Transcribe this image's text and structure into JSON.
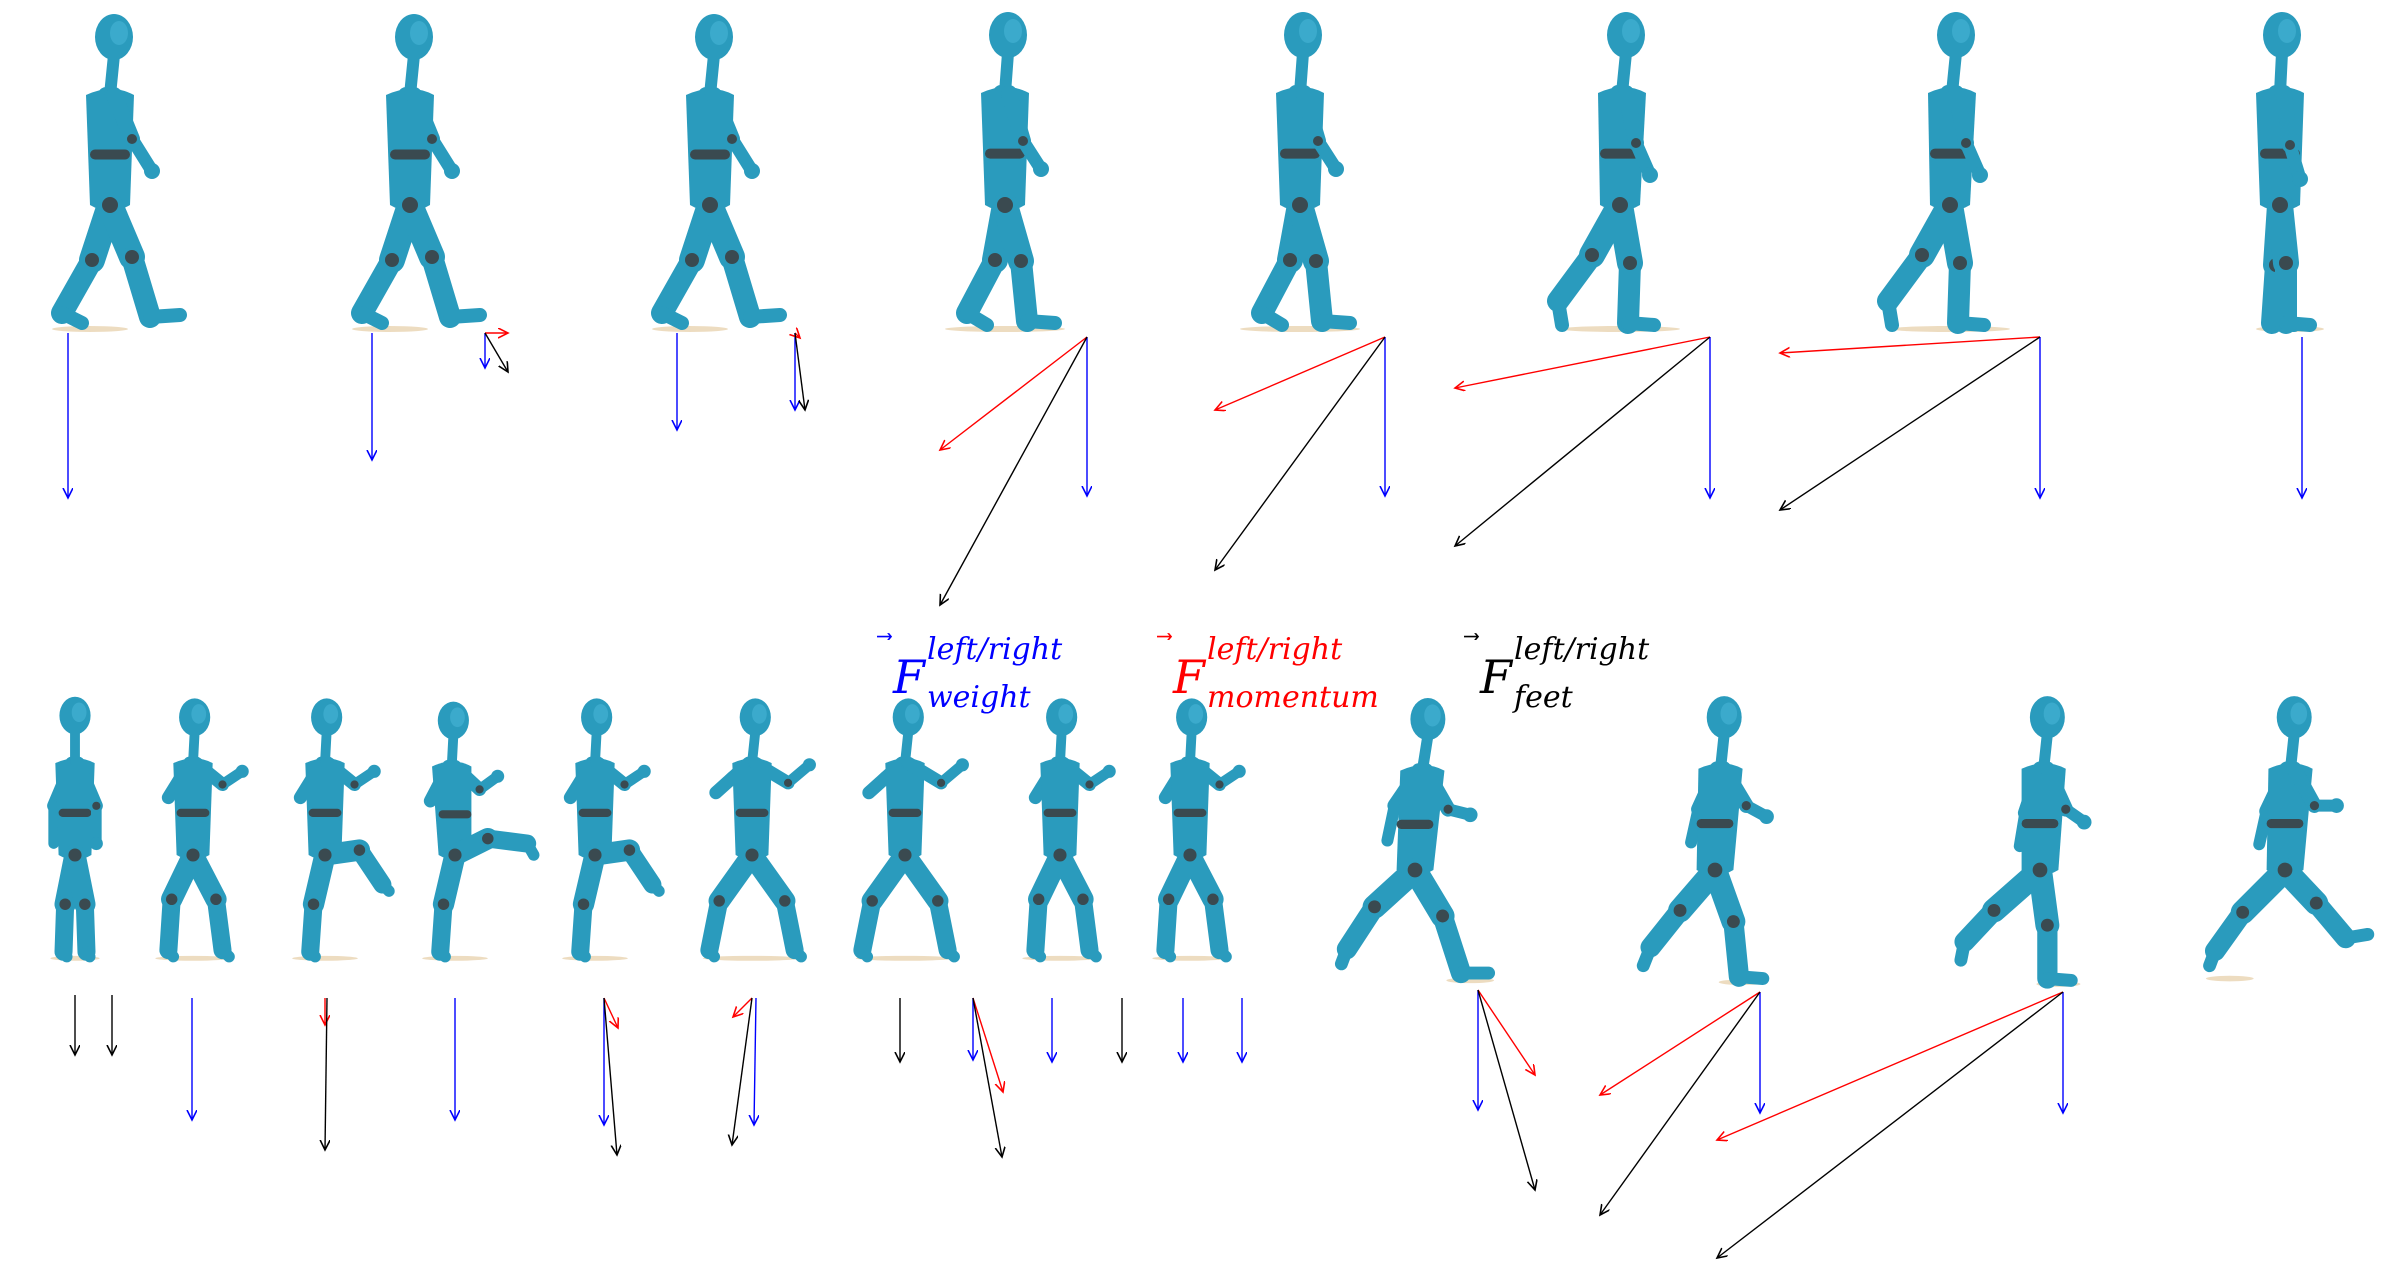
{
  "legend": {
    "symbol": "F",
    "weight": {
      "superscript": "left/right",
      "subscript": "weight",
      "color": "#0000ff"
    },
    "momentum": {
      "superscript": "left/right",
      "subscript": "momentum",
      "color": "#ff0000"
    },
    "feet": {
      "superscript": "left/right",
      "subscript": "feet",
      "color": "#000000"
    }
  },
  "colors": {
    "body": "#2a9bbd",
    "body_dark": "#1f6f88",
    "joint": "#3a4a50",
    "floor": "#e8d3b0"
  },
  "sequences": [
    {
      "name": "walking-sequence",
      "frames": 8
    },
    {
      "name": "martial-arts-sequence",
      "frames": 9
    },
    {
      "name": "running-sequence",
      "frames": 4
    }
  ]
}
